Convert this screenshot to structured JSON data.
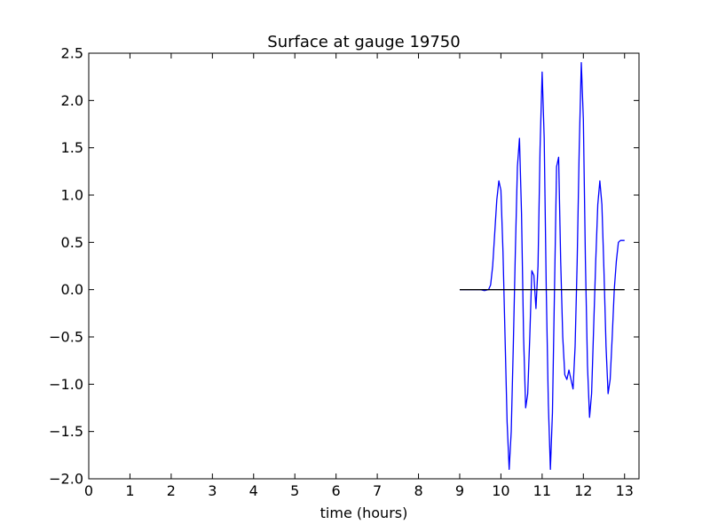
{
  "chart_data": {
    "type": "line",
    "title": "Surface at gauge 19750",
    "xlabel": "time (hours)",
    "ylabel": "",
    "xlim": [
      0,
      13.35
    ],
    "ylim": [
      -2.0,
      2.5
    ],
    "xticks": [
      "0",
      "1",
      "2",
      "3",
      "4",
      "5",
      "6",
      "7",
      "8",
      "9",
      "10",
      "11",
      "12",
      "13"
    ],
    "yticks": [
      "2.5",
      "2.0",
      "1.5",
      "1.0",
      "0.5",
      "0.0",
      "−0.5",
      "−1.0",
      "−1.5",
      "−2.0"
    ],
    "grid": false,
    "series": [
      {
        "color": "#0000ff",
        "x": [
          9.0,
          9.5,
          9.6,
          9.7,
          9.75,
          9.8,
          9.85,
          9.9,
          9.95,
          10.0,
          10.05,
          10.1,
          10.15,
          10.2,
          10.25,
          10.3,
          10.35,
          10.4,
          10.45,
          10.5,
          10.55,
          10.6,
          10.65,
          10.7,
          10.75,
          10.8,
          10.85,
          10.9,
          10.95,
          11.0,
          11.05,
          11.1,
          11.15,
          11.2,
          11.25,
          11.3,
          11.35,
          11.4,
          11.45,
          11.5,
          11.55,
          11.6,
          11.65,
          11.7,
          11.75,
          11.8,
          11.85,
          11.9,
          11.95,
          12.0,
          12.05,
          12.1,
          12.15,
          12.2,
          12.25,
          12.3,
          12.35,
          12.4,
          12.45,
          12.5,
          12.55,
          12.6,
          12.65,
          12.7,
          12.75,
          12.8,
          12.85,
          12.9,
          12.95,
          13.0
        ],
        "y": [
          0.0,
          0.0,
          -0.01,
          0.0,
          0.05,
          0.25,
          0.6,
          0.95,
          1.15,
          1.05,
          0.4,
          -0.5,
          -1.4,
          -1.9,
          -1.5,
          -0.6,
          0.4,
          1.3,
          1.6,
          0.8,
          -0.5,
          -1.25,
          -1.1,
          -0.5,
          0.2,
          0.15,
          -0.2,
          0.25,
          1.5,
          2.3,
          1.6,
          0.0,
          -1.2,
          -1.9,
          -1.3,
          0.0,
          1.3,
          1.4,
          0.3,
          -0.5,
          -0.9,
          -0.95,
          -0.85,
          -0.95,
          -1.05,
          -0.6,
          0.3,
          1.5,
          2.4,
          1.8,
          0.3,
          -0.8,
          -1.35,
          -1.1,
          -0.4,
          0.3,
          0.9,
          1.15,
          0.9,
          0.2,
          -0.6,
          -1.1,
          -0.95,
          -0.5,
          0.0,
          0.3,
          0.5,
          0.52,
          0.52,
          0.52
        ]
      },
      {
        "color": "#000000",
        "x": [
          9.0,
          13.0
        ],
        "y": [
          0.0,
          0.0
        ]
      }
    ]
  }
}
